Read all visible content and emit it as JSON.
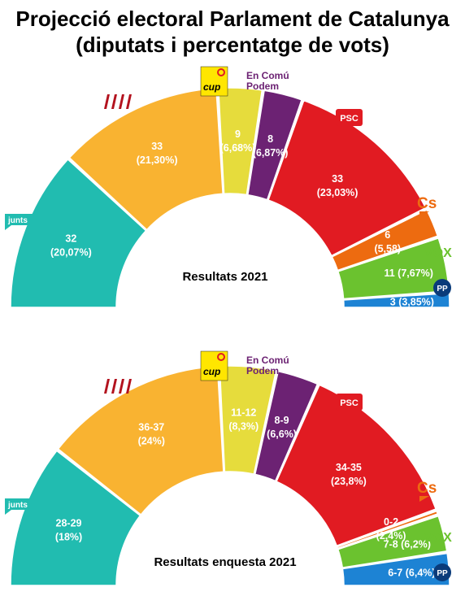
{
  "title_line1": "Projecció electoral Parlament de Catalunya",
  "title_line2": "(diputats i percentatge de vots)",
  "party_logos": {
    "cup": "cup",
    "encomu_line1": "En Comú",
    "encomu_line2": "Podem",
    "psc": "PSC",
    "cs": "Cs",
    "vox": "VOX",
    "pp": "PP",
    "junts": "junts"
  },
  "colors": {
    "Junts": "#21bcb0",
    "ERC": "#f9b331",
    "CUP": "#e6dc3c",
    "En Comú Podem": "#6c2273",
    "PSC": "#e11b22",
    "Cs": "#ed6b10",
    "VOX": "#6bc22f",
    "PP": "#1d83d4"
  },
  "chart_data": [
    {
      "type": "bar",
      "subtype": "parliament-semicircle",
      "title": "Resultats  2021",
      "categories": [
        "Junts",
        "ERC",
        "CUP",
        "En Comú Podem",
        "PSC",
        "Cs",
        "VOX",
        "PP"
      ],
      "values": [
        32,
        33,
        9,
        8,
        33,
        6,
        11,
        3
      ],
      "labels_line1": [
        "32",
        "33",
        "9",
        "8",
        "33",
        "6",
        "11 (7,67%)",
        "3 (3,85%)"
      ],
      "labels_line2": [
        "(20,07%)",
        "(21,30%)",
        "(6,68%)",
        "(6,87%)",
        "(23,03%)",
        "(5,58)",
        "",
        ""
      ]
    },
    {
      "type": "bar",
      "subtype": "parliament-semicircle",
      "title": "Resultats enquesta 2021",
      "categories": [
        "Junts",
        "ERC",
        "CUP",
        "En Comú Podem",
        "PSC",
        "Cs",
        "VOX",
        "PP"
      ],
      "values": [
        28.5,
        36.5,
        11.5,
        8.5,
        34.5,
        1,
        7.5,
        6.5
      ],
      "labels_line1": [
        "28-29",
        "36-37",
        "11-12",
        "8-9",
        "34-35",
        "0-2",
        "7-8 (6,2%)",
        "6-7 (6,4%)"
      ],
      "labels_line2": [
        "(18%)",
        "(24%)",
        "(8,3%)",
        "(6,6%)",
        "(23,8%)",
        "(2,4%)",
        "",
        ""
      ]
    }
  ]
}
